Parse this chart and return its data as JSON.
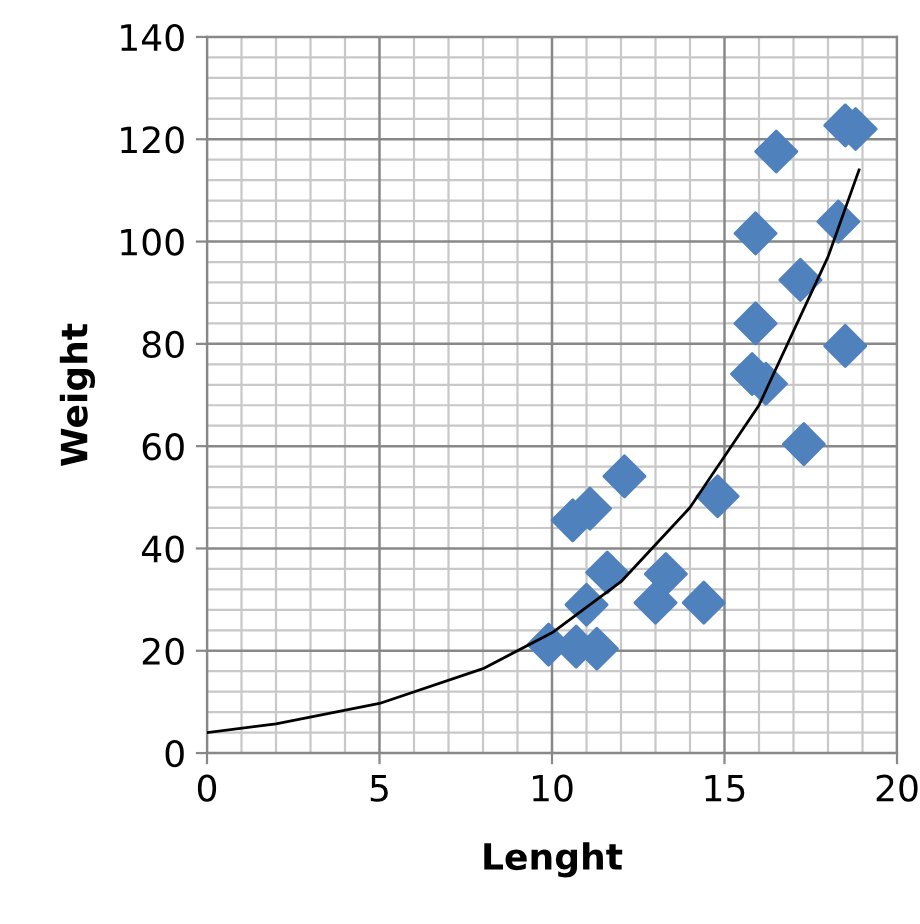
{
  "chart_data": {
    "type": "scatter",
    "xlabel": "Lenght",
    "ylabel": "Weight",
    "xlim": [
      0,
      20
    ],
    "ylim": [
      0,
      140
    ],
    "xticks": [
      0,
      5,
      10,
      15,
      20
    ],
    "yticks": [
      0,
      20,
      40,
      60,
      80,
      100,
      120,
      140
    ],
    "grid": true,
    "legend": false,
    "marker": "diamond",
    "series": [
      {
        "color": "#4f81bd",
        "x": [
          9.9,
          10.7,
          11.3,
          11.0,
          11.6,
          10.6,
          11.1,
          12.1,
          13.0,
          13.3,
          14.4,
          14.8,
          15.8,
          16.2,
          17.3,
          16.5,
          18.5,
          18.8,
          15.9,
          18.3,
          17.2,
          15.9,
          18.5
        ],
        "values": [
          21.2,
          20.8,
          20.4,
          29.0,
          35.3,
          45.5,
          47.8,
          54.1,
          29.4,
          35.0,
          29.4,
          50.2,
          74.1,
          72.2,
          60.4,
          117.6,
          122.7,
          122.0,
          101.6,
          103.9,
          92.5,
          84.0,
          79.6
        ]
      },
      {
        "type": "line",
        "color": "#000000",
        "marker": "none",
        "x": [
          0,
          2,
          5,
          8,
          10,
          12,
          14,
          16,
          18,
          18.9
        ],
        "values": [
          4,
          5.7,
          9.7,
          16.5,
          23.5,
          33.5,
          48,
          68,
          97,
          114
        ]
      }
    ]
  }
}
